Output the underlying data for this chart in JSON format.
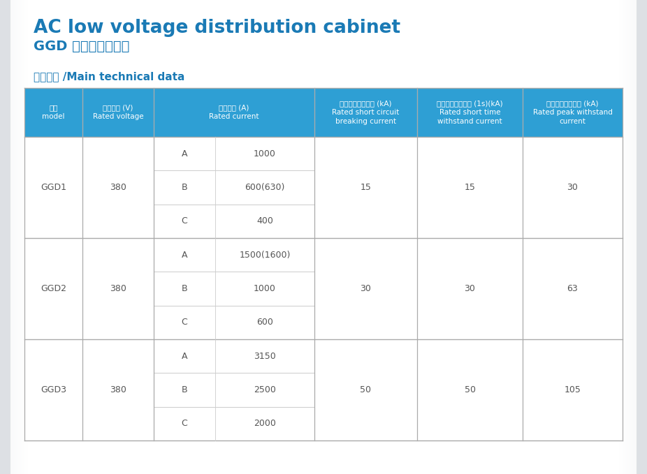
{
  "title_line1": "AC low voltage distribution cabinet",
  "title_line2": "GGD 交流低压配电柜",
  "subtitle": "电气性能 /Main technical data",
  "bg_color": "#dde0e4",
  "white_bg": "#ffffff",
  "header_bg": "#2e9fd4",
  "header_text_color": "#ffffff",
  "cell_text_color": "#555555",
  "title_color": "#1a7ab5",
  "subtitle_color": "#1a7ab5",
  "major_line_color": "#aaaaaa",
  "minor_line_color": "#cccccc",
  "header_cols": [
    "型号\nmodel",
    "额定电压 (V)\nRated voltage",
    "额定电流 (A)\nRated current",
    "",
    "额定短路开断电流 (kA)\nRated short circuit\nbreaking current",
    "额定短时耐受电流 (1s)(kA)\nRated short time\nwithstand current",
    "额定峰値耐受电流 (kA)\nRated peak withstand\ncurrent"
  ],
  "current_subtypes": [
    [
      "A",
      "1000"
    ],
    [
      "B",
      "600(630)"
    ],
    [
      "C",
      "400"
    ],
    [
      "A",
      "1500(1600)"
    ],
    [
      "B",
      "1000"
    ],
    [
      "C",
      "600"
    ],
    [
      "A",
      "3150"
    ],
    [
      "B",
      "2500"
    ],
    [
      "C",
      "2000"
    ]
  ],
  "groups": [
    [
      0,
      2,
      "GGD1",
      "380",
      "15",
      "15",
      "30"
    ],
    [
      3,
      5,
      "GGD2",
      "380",
      "30",
      "30",
      "63"
    ],
    [
      6,
      8,
      "GGD3",
      "380",
      "50",
      "50",
      "105"
    ]
  ]
}
